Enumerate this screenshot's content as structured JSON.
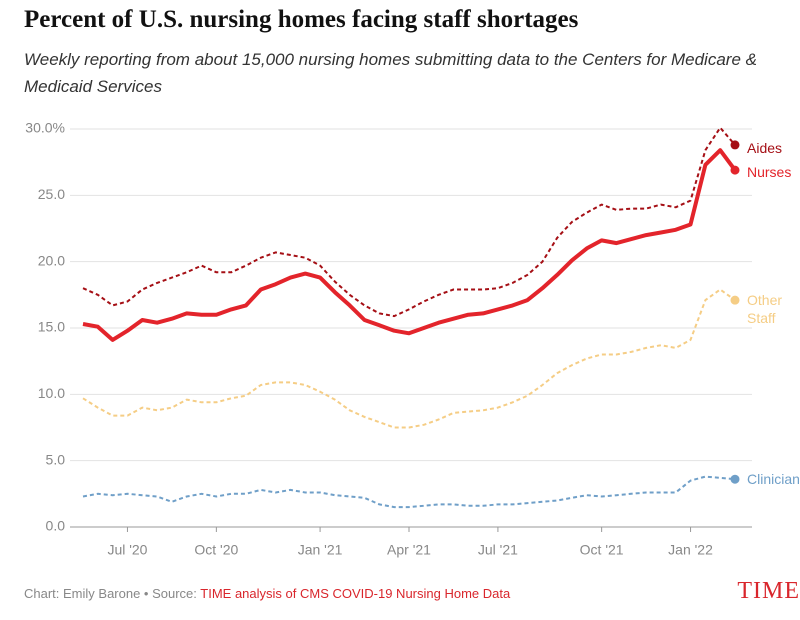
{
  "chart_data": {
    "type": "line",
    "title": "Percent of U.S. nursing homes facing staff shortages",
    "subtitle": "Weekly reporting from about 15,000 nursing homes submitting data to the Centers for Medicare & Medicaid Services",
    "categories": [
      null,
      null,
      null,
      "Jul '20",
      null,
      null,
      null,
      null,
      null,
      "Oct '20",
      null,
      null,
      null,
      null,
      null,
      null,
      "Jan '21",
      null,
      null,
      null,
      null,
      null,
      "Apr '21",
      null,
      null,
      null,
      null,
      null,
      "Jul '21",
      null,
      null,
      null,
      null,
      null,
      null,
      "Oct '21",
      null,
      null,
      null,
      null,
      null,
      "Jan '22",
      null,
      null,
      null
    ],
    "ylim": [
      0,
      30
    ],
    "yticks": [
      {
        "value": 0,
        "label": "0.0"
      },
      {
        "value": 5,
        "label": "5.0"
      },
      {
        "value": 10,
        "label": "10.0"
      },
      {
        "value": 15,
        "label": "15.0"
      },
      {
        "value": 20,
        "label": "20.0"
      },
      {
        "value": 25,
        "label": "25.0"
      },
      {
        "value": 30,
        "label": "30.0%"
      }
    ],
    "grid": true,
    "series": [
      {
        "name": "Aides",
        "color": "#a50f15",
        "dashed": true,
        "values": [
          18.0,
          17.5,
          16.7,
          17.0,
          17.9,
          18.4,
          18.8,
          19.2,
          19.7,
          19.2,
          19.2,
          19.7,
          20.3,
          20.7,
          20.5,
          20.3,
          19.7,
          18.5,
          17.5,
          16.7,
          16.1,
          15.9,
          16.4,
          17.0,
          17.5,
          17.9,
          17.9,
          17.9,
          18.0,
          18.4,
          19.0,
          20.0,
          21.8,
          23.0,
          23.7,
          24.3,
          23.9,
          24.0,
          24.0,
          24.3,
          24.1,
          24.6,
          28.4,
          30.1,
          28.8
        ]
      },
      {
        "name": "Nurses",
        "color": "#e3242b",
        "dashed": false,
        "values": [
          15.3,
          15.1,
          14.1,
          14.8,
          15.6,
          15.4,
          15.7,
          16.1,
          16.0,
          16.0,
          16.4,
          16.7,
          17.9,
          18.3,
          18.8,
          19.1,
          18.8,
          17.7,
          16.7,
          15.6,
          15.2,
          14.8,
          14.6,
          15.0,
          15.4,
          15.7,
          16.0,
          16.1,
          16.4,
          16.7,
          17.1,
          18.0,
          19.0,
          20.1,
          21.0,
          21.6,
          21.4,
          21.7,
          22.0,
          22.2,
          22.4,
          22.8,
          27.3,
          28.4,
          26.9
        ]
      },
      {
        "name": "Other Staff",
        "color": "#f5cd85",
        "dashed": true,
        "values": [
          9.7,
          9.0,
          8.4,
          8.4,
          9.0,
          8.8,
          9.0,
          9.6,
          9.4,
          9.4,
          9.7,
          9.9,
          10.7,
          10.9,
          10.9,
          10.7,
          10.2,
          9.6,
          8.8,
          8.3,
          7.9,
          7.5,
          7.5,
          7.7,
          8.1,
          8.6,
          8.7,
          8.8,
          9.0,
          9.4,
          9.9,
          10.7,
          11.6,
          12.2,
          12.7,
          13.0,
          13.0,
          13.2,
          13.5,
          13.7,
          13.5,
          14.1,
          17.1,
          17.9,
          17.1
        ]
      },
      {
        "name": "Clinicians",
        "color": "#6f9fc8",
        "dashed": true,
        "values": [
          2.3,
          2.5,
          2.4,
          2.5,
          2.4,
          2.3,
          1.9,
          2.3,
          2.5,
          2.3,
          2.5,
          2.5,
          2.8,
          2.6,
          2.8,
          2.6,
          2.6,
          2.4,
          2.3,
          2.2,
          1.7,
          1.5,
          1.5,
          1.6,
          1.7,
          1.7,
          1.6,
          1.6,
          1.7,
          1.7,
          1.8,
          1.9,
          2.0,
          2.2,
          2.4,
          2.3,
          2.4,
          2.5,
          2.6,
          2.6,
          2.6,
          3.5,
          3.8,
          3.7,
          3.6
        ]
      }
    ]
  },
  "footer": {
    "credit": "Chart: Emily Barone • Source: ",
    "source": "TIME analysis of CMS COVID-19 Nursing Home Data",
    "logo": "TIME"
  }
}
